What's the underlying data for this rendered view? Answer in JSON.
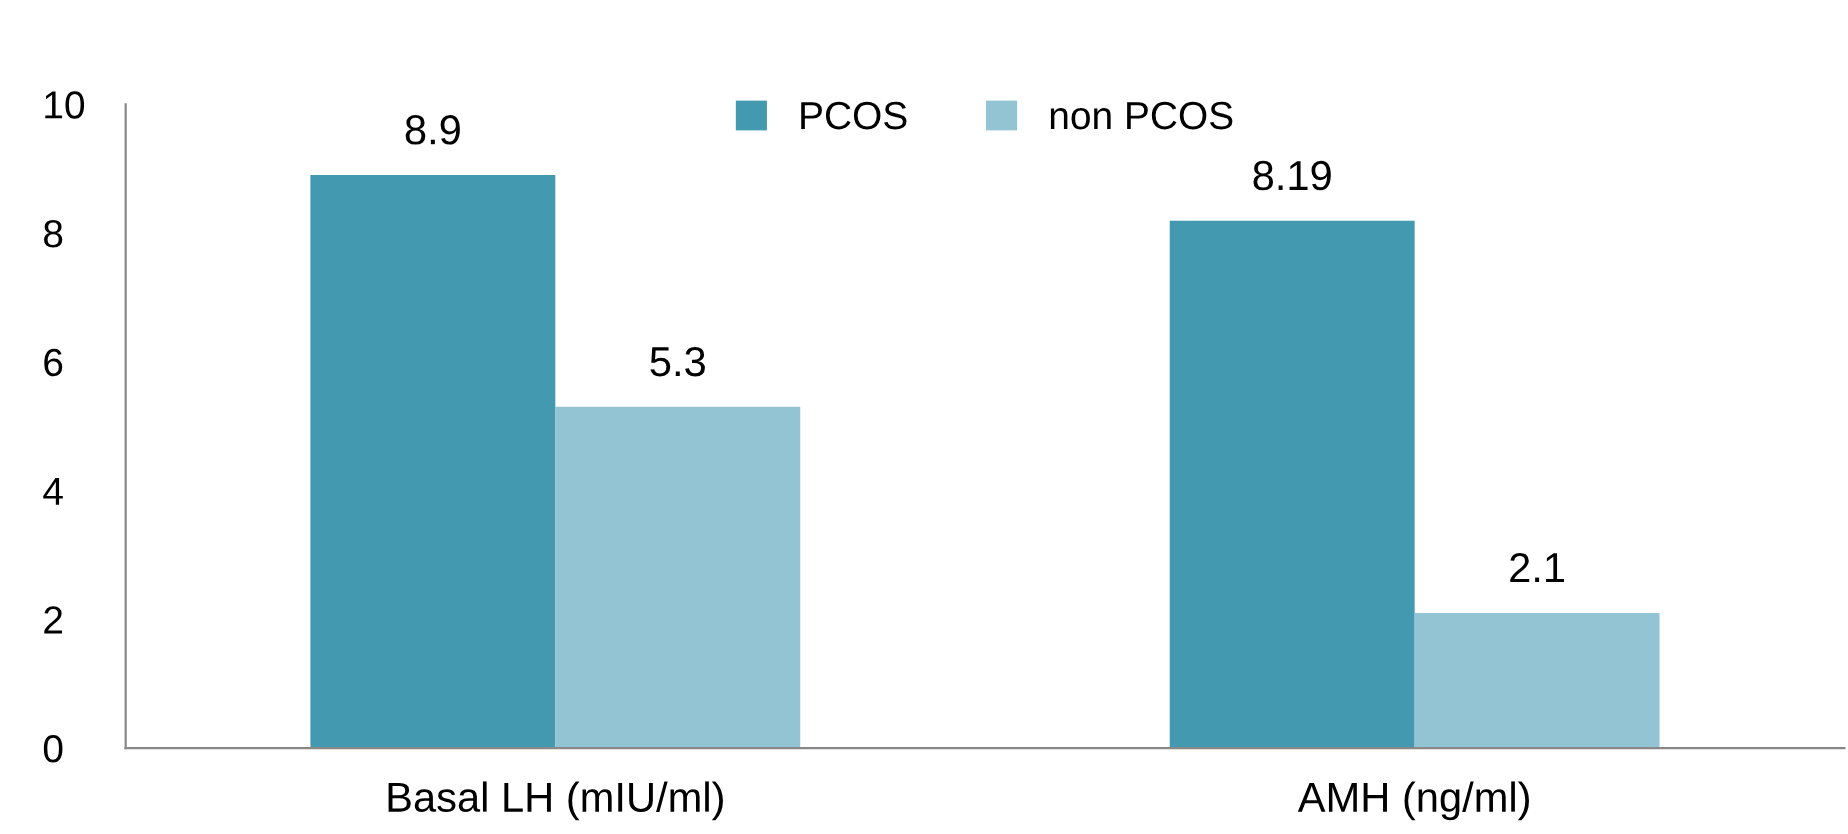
{
  "chart_data": {
    "type": "bar",
    "categories": [
      "Basal LH (mIU/ml)",
      "AMH (ng/ml)"
    ],
    "series": [
      {
        "name": "PCOS",
        "color": "#4299b0",
        "values": [
          8.9,
          8.19
        ]
      },
      {
        "name": "non PCOS",
        "color": "#93c4d4",
        "values": [
          5.3,
          2.1
        ]
      }
    ],
    "ylim": [
      0,
      10
    ],
    "yticks": [
      0,
      2,
      4,
      6,
      8,
      10
    ],
    "grid": false,
    "legend": "top",
    "data_labels": true
  }
}
